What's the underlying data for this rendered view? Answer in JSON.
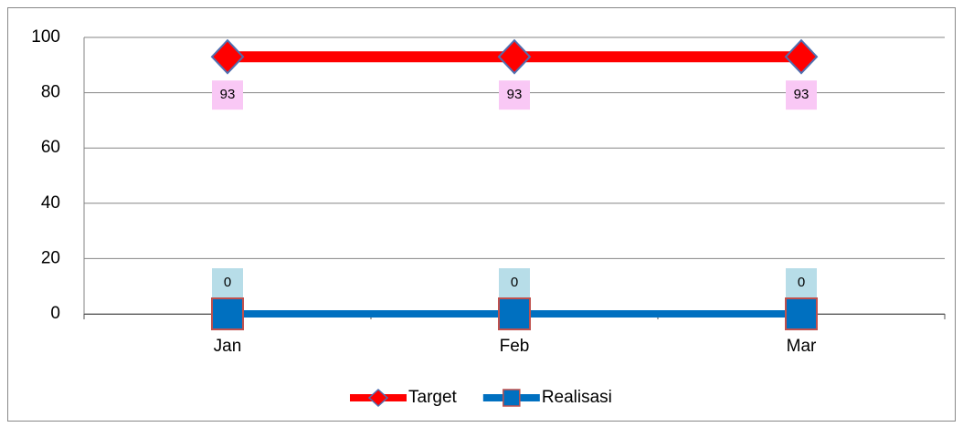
{
  "chart_data": {
    "type": "line",
    "categories": [
      "Jan",
      "Feb",
      "Mar"
    ],
    "series": [
      {
        "name": "Target",
        "color": "#ff0000",
        "marker": "diamond",
        "marker_color": "#ff0000",
        "marker_edge": "#4f6fb0",
        "label_background": "#f9c8f5",
        "label_position": "below",
        "values": [
          93,
          93,
          93
        ]
      },
      {
        "name": "Realisasi",
        "color": "#0070c0",
        "marker": "square",
        "marker_color": "#0070c0",
        "marker_edge": "#c0504d",
        "label_background": "#b7dde8",
        "label_position": "above",
        "values": [
          0,
          0,
          0
        ]
      }
    ],
    "ylim": [
      0,
      100
    ],
    "yticks": [
      0,
      20,
      40,
      60,
      80,
      100
    ],
    "grid": true,
    "legend": "bottom"
  }
}
